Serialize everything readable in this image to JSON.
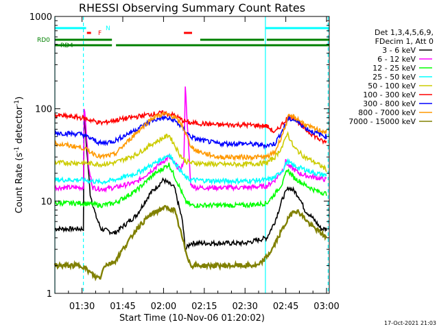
{
  "chart_data": {
    "type": "line",
    "title": "RHESSI Observing Summary Count Rates",
    "xlabel": "Start Time (10-Nov-06 01:20:02)",
    "ylabel_main": "Count Rate (s",
    "ylabel_sup": "-1",
    "ylabel_rest": " detector",
    "ylabel_end": ")",
    "x_unit": "minutes after 01:20:02",
    "xlim": [
      0,
      101
    ],
    "ylim": [
      1,
      1000
    ],
    "yscale": "log",
    "x_ticks": [
      {
        "label": "01:30",
        "t": 10
      },
      {
        "label": "01:45",
        "t": 25
      },
      {
        "label": "02:00",
        "t": 40
      },
      {
        "label": "02:15",
        "t": 55
      },
      {
        "label": "02:30",
        "t": 70
      },
      {
        "label": "02:45",
        "t": 85
      },
      {
        "label": "03:00",
        "t": 100
      }
    ],
    "y_ticks": [
      {
        "label": "1",
        "v": 1
      },
      {
        "label": "10",
        "v": 10
      },
      {
        "label": "100",
        "v": 100
      },
      {
        "label": "1000",
        "v": 1000
      }
    ],
    "legend_header": [
      "Det 1,3,4,5,6,9,",
      "FDecim 1, Att 0"
    ],
    "legend_placement": "right",
    "series": [
      {
        "name": "3 - 6 keV",
        "color": "#000000",
        "x": [
          0,
          10.5,
          10.7,
          13,
          15,
          17,
          22,
          30,
          35,
          40,
          44,
          47,
          48,
          50,
          52,
          60,
          70,
          78,
          81,
          84,
          86,
          88,
          90,
          92,
          94,
          96,
          98,
          100
        ],
        "values": [
          5,
          5,
          90,
          12,
          7,
          5,
          4.5,
          7,
          12,
          17,
          14,
          6,
          3,
          3.5,
          3.5,
          3.5,
          3.5,
          4,
          6,
          11,
          14,
          13,
          11,
          8,
          7,
          6,
          5,
          5
        ]
      },
      {
        "name": "6 - 12 keV",
        "color": "#ff00ff",
        "x": [
          0,
          10,
          10.5,
          10.7,
          11.5,
          12.5,
          14,
          17,
          22,
          30,
          36,
          42,
          46,
          47.5,
          48,
          49,
          50,
          52,
          60,
          70,
          78,
          81,
          84,
          85,
          86,
          88,
          90,
          92,
          96,
          100
        ],
        "values": [
          14,
          14,
          14,
          110,
          60,
          22,
          14,
          13.5,
          14,
          16,
          22,
          30,
          22,
          26,
          180,
          50,
          15,
          14,
          14,
          14,
          14.5,
          17,
          22,
          27,
          24,
          22,
          20,
          19,
          18,
          17
        ]
      },
      {
        "name": "12 - 25 keV",
        "color": "#00ff00",
        "x": [
          0,
          10,
          17,
          22,
          30,
          36,
          42,
          46,
          48,
          50,
          60,
          70,
          78,
          81,
          84,
          85.5,
          88,
          92,
          96,
          100
        ],
        "values": [
          9.5,
          9.5,
          9,
          9.5,
          13,
          19,
          25,
          14,
          10,
          9,
          9,
          9,
          9.5,
          12,
          16,
          22,
          18,
          15,
          13,
          12
        ]
      },
      {
        "name": "25 - 50 keV",
        "color": "#00ffff",
        "x": [
          0,
          10,
          17,
          22,
          30,
          36,
          42,
          46,
          48,
          50,
          60,
          70,
          78,
          81,
          84,
          85.5,
          88,
          92,
          96,
          100
        ],
        "values": [
          17,
          17,
          16,
          17,
          20,
          25,
          32,
          22,
          18,
          17,
          16.5,
          16.5,
          17,
          18,
          22,
          27,
          24,
          22,
          20,
          19
        ]
      },
      {
        "name": "50 - 100 keV",
        "color": "#cccc00",
        "x": [
          0,
          10,
          17,
          22,
          30,
          36,
          42,
          46,
          48,
          50,
          60,
          70,
          78,
          81,
          84,
          85.5,
          88,
          92,
          96,
          100
        ],
        "values": [
          26,
          26,
          25,
          26,
          32,
          42,
          52,
          32,
          27,
          26,
          25,
          25,
          26,
          30,
          40,
          55,
          38,
          30,
          26,
          22
        ]
      },
      {
        "name": "100 - 300 keV",
        "color": "#ff0000",
        "x": [
          0,
          10,
          17,
          22,
          30,
          36,
          40,
          44,
          47,
          50,
          52,
          60,
          70,
          78,
          81,
          84,
          86,
          88,
          90,
          92,
          94,
          96,
          98,
          100
        ],
        "values": [
          85,
          80,
          70,
          75,
          82,
          88,
          90,
          85,
          75,
          70,
          70,
          67,
          67,
          65,
          55,
          70,
          82,
          80,
          70,
          60,
          55,
          50,
          45,
          43
        ]
      },
      {
        "name": "300 - 800 keV",
        "color": "#0000ff",
        "x": [
          0,
          10,
          17,
          22,
          30,
          36,
          40,
          44,
          47,
          50,
          52,
          60,
          70,
          78,
          81,
          84,
          86,
          88,
          90,
          92,
          94,
          96,
          98,
          100
        ],
        "values": [
          55,
          53,
          42,
          45,
          60,
          75,
          80,
          75,
          62,
          50,
          47,
          42,
          42,
          40,
          42,
          60,
          78,
          76,
          70,
          63,
          58,
          55,
          52,
          50
        ]
      },
      {
        "name": "800 - 7000 keV",
        "color": "#ff9900",
        "x": [
          0,
          10,
          17,
          22,
          30,
          36,
          40,
          44,
          47,
          50,
          52,
          60,
          70,
          78,
          81,
          84,
          86,
          88,
          90,
          92,
          94,
          96,
          98,
          100
        ],
        "values": [
          42,
          38,
          30,
          32,
          55,
          80,
          88,
          82,
          65,
          40,
          35,
          30,
          30,
          30,
          34,
          55,
          82,
          82,
          75,
          68,
          63,
          60,
          58,
          56
        ]
      },
      {
        "name": "7000 - 15000 keV",
        "color": "#808000",
        "x": [
          0,
          10,
          15,
          17,
          18,
          22,
          25,
          28,
          30,
          35,
          40,
          44,
          46,
          48,
          50,
          60,
          70,
          75,
          78,
          80,
          83,
          86,
          88,
          90,
          92,
          94,
          96,
          98,
          100
        ],
        "values": [
          2,
          2,
          1.5,
          1.5,
          2,
          2.2,
          3,
          4,
          5,
          7,
          8.5,
          8,
          5,
          3,
          2,
          2,
          2,
          2,
          2.5,
          3,
          4.5,
          6.5,
          8,
          7.5,
          6.5,
          5.5,
          5,
          4.5,
          4
        ]
      }
    ],
    "flags": [
      {
        "label": "N",
        "color": "#00ffff",
        "label_color": "#00ffff",
        "segments": [
          [
            0,
            11.5
          ],
          [
            77.5,
            101
          ]
        ]
      },
      {
        "label": "F",
        "color": "#ff0000",
        "label_color": "#ff0000",
        "segments": [
          [
            11.8,
            13.3
          ],
          [
            47.5,
            50.5
          ]
        ]
      },
      {
        "label": "RD0",
        "color": "#008000",
        "label_color": "#008000",
        "segments": [
          [
            0,
            21
          ],
          [
            53.5,
            77
          ],
          [
            78,
            101
          ]
        ]
      },
      {
        "label": "RD4",
        "color": "#008000",
        "label_color": "#008000",
        "segments": [
          [
            0,
            21
          ],
          [
            22.5,
            101
          ]
        ]
      }
    ],
    "vlines": [
      {
        "t": 0,
        "style": "solid"
      },
      {
        "t": 10.5,
        "style": "dashed"
      },
      {
        "t": 77.5,
        "style": "solid"
      },
      {
        "t": 100.6,
        "style": "dashed"
      }
    ],
    "vline_color": "#00ffff",
    "footer_date": "17-Oct-2021 21:03"
  }
}
